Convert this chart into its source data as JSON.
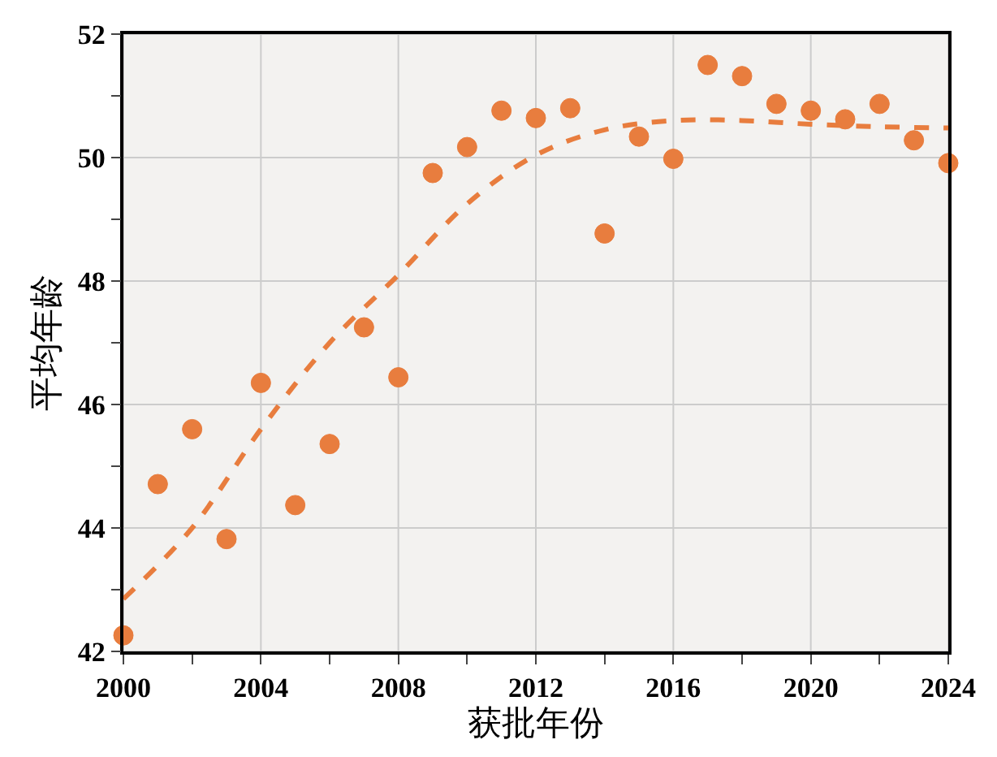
{
  "chart_data": {
    "type": "scatter",
    "xlabel": "获批年份",
    "ylabel": "平均年龄",
    "x": [
      2000,
      2001,
      2002,
      2003,
      2004,
      2005,
      2006,
      2007,
      2008,
      2009,
      2010,
      2011,
      2012,
      2013,
      2014,
      2015,
      2016,
      2017,
      2018,
      2019,
      2020,
      2021,
      2022,
      2023,
      2024
    ],
    "series": [
      {
        "color": "#e87d3e",
        "marker": "circle",
        "values": [
          42.26,
          44.71,
          45.6,
          43.82,
          46.35,
          44.37,
          45.36,
          47.25,
          46.44,
          49.75,
          50.17,
          50.76,
          50.64,
          50.8,
          48.77,
          50.34,
          49.98,
          51.5,
          51.32,
          50.87,
          50.76,
          50.62,
          50.87,
          50.28,
          49.91
        ]
      },
      {
        "type": "line",
        "color": "#e87d3e",
        "line_style": "dashed",
        "x": [
          2000,
          2002,
          2004,
          2006,
          2008,
          2010,
          2012,
          2014,
          2016,
          2018,
          2020,
          2022,
          2024
        ],
        "values": [
          42.85,
          44.0,
          45.6,
          47.0,
          48.1,
          49.25,
          50.04,
          50.45,
          50.6,
          50.6,
          50.54,
          50.5,
          50.48
        ]
      }
    ],
    "xlim": [
      2000,
      2024
    ],
    "xticks": [
      2000,
      {
        "value": 2002,
        "label": null
      },
      2004,
      {
        "value": 2006,
        "label": null
      },
      2008,
      {
        "value": 2010,
        "label": null
      },
      2012,
      {
        "value": 2014,
        "label": null
      },
      2016,
      {
        "value": 2018,
        "label": null
      },
      2020,
      {
        "value": 2022,
        "label": null
      },
      2024
    ],
    "ylim": [
      42,
      52
    ],
    "yticks": [
      42,
      {
        "value": 43,
        "label": null
      },
      44,
      {
        "value": 45,
        "label": null
      },
      46,
      {
        "value": 47,
        "label": null
      },
      48,
      {
        "value": 49,
        "label": null
      },
      50,
      {
        "value": 51,
        "label": null
      },
      52
    ],
    "grid": true
  }
}
